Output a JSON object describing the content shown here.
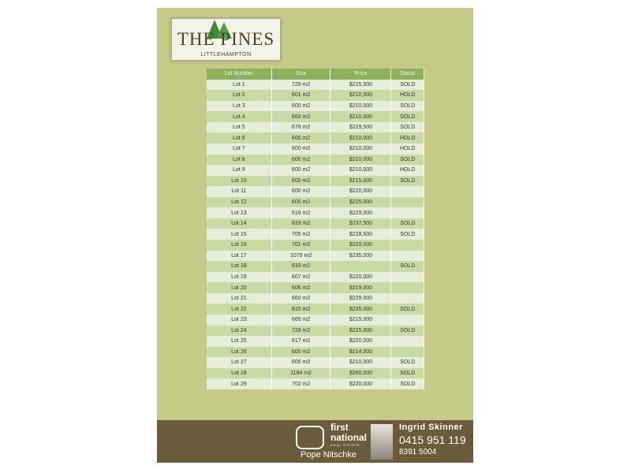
{
  "logo": {
    "title": "THE PINES",
    "subtitle": "LITTLEHAMPTON"
  },
  "table": {
    "headers": [
      "Lot Number",
      "Size",
      "Price",
      "Status"
    ],
    "rows": [
      [
        "Lot 1",
        "729 m2",
        "$225,500",
        "SOLD"
      ],
      [
        "Lot 2",
        "601 m2",
        "$210,000",
        "HOLD"
      ],
      [
        "Lot 3",
        "600 m2",
        "$210,000",
        "SOLD"
      ],
      [
        "Lot 4",
        "660 m2",
        "$210,000",
        "SOLD"
      ],
      [
        "Lot 5",
        "678 m2",
        "$229,500",
        "SOLD"
      ],
      [
        "Lot 6",
        "600 m2",
        "$210,000",
        "HOLD"
      ],
      [
        "Lot 7",
        "600 m2",
        "$210,000",
        "HOLD"
      ],
      [
        "Lot 8",
        "600 m2",
        "$210,000",
        "SOLD"
      ],
      [
        "Lot 9",
        "600 m2",
        "$210,000",
        "HOLD"
      ],
      [
        "Lot 10",
        "600 m2",
        "$215,000",
        "SOLD"
      ],
      [
        "Lot 11",
        "600 m2",
        "$220,000",
        ""
      ],
      [
        "Lot 12",
        "600 m2",
        "$225,000",
        ""
      ],
      [
        "Lot 13",
        "616 m2",
        "$229,000",
        ""
      ],
      [
        "Lot 14",
        "833 m2",
        "$237,500",
        "SOLD"
      ],
      [
        "Lot 15",
        "705 m2",
        "$228,500",
        "SOLD"
      ],
      [
        "Lot 16",
        "701 m2",
        "$220,000",
        ""
      ],
      [
        "Lot 17",
        "1079 m2",
        "$235,000",
        ""
      ],
      [
        "Lot 18",
        "933 m2",
        "",
        "SOLD"
      ],
      [
        "Lot 19",
        "607 m2",
        "$220,000",
        ""
      ],
      [
        "Lot 20",
        "606 m2",
        "$219,000",
        ""
      ],
      [
        "Lot 21",
        "660 m2",
        "$229,000",
        ""
      ],
      [
        "Lot 22",
        "815 m2",
        "$235,000",
        "SOLD"
      ],
      [
        "Lot 23",
        "665 m2",
        "$215,000",
        ""
      ],
      [
        "Lot 24",
        "728 m2",
        "$225,000",
        "SOLD"
      ],
      [
        "Lot 25",
        "617 m2",
        "$220,000",
        ""
      ],
      [
        "Lot 26",
        "600 m2",
        "$214,000",
        ""
      ],
      [
        "Lot 27",
        "605 m2",
        "$210,000",
        "SOLD"
      ],
      [
        "Lot 28",
        "1194 m2",
        "$260,000",
        "SOLD"
      ],
      [
        "Lot 29",
        "702 m2",
        "$220,000",
        "SOLD"
      ]
    ]
  },
  "footer": {
    "brand_line1": "first",
    "brand_line2": "national",
    "brand_tag": "REAL ESTATE",
    "office": "Pope Nitschke",
    "agent": "Ingrid Skinner",
    "mobile": "0415 951 119",
    "phone": "8391 5004"
  },
  "colors": {
    "page_bg": "#c5cb87",
    "header": "#8eb15a",
    "footer": "#6a5c3b"
  }
}
